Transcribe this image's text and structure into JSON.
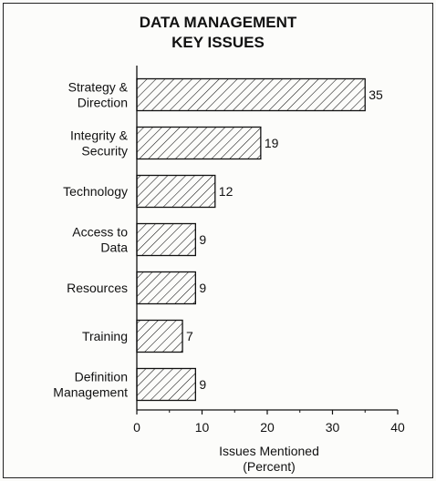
{
  "chart_data": {
    "type": "bar",
    "orientation": "horizontal",
    "title": [
      "DATA MANAGEMENT",
      "KEY ISSUES"
    ],
    "categories": [
      [
        "Strategy &",
        "Direction"
      ],
      [
        "Integrity &",
        "Security"
      ],
      [
        "Technology"
      ],
      [
        "Access to",
        "Data"
      ],
      [
        "Resources"
      ],
      [
        "Training"
      ],
      [
        "Definition",
        "Management"
      ]
    ],
    "values": [
      35,
      19,
      12,
      9,
      9,
      7,
      9
    ],
    "xlabel": [
      "Issues Mentioned",
      "(Percent)"
    ],
    "xticks": [
      0,
      10,
      20,
      30,
      40
    ],
    "xlim": [
      0,
      40
    ],
    "bar_fill": "diagonal-hatch",
    "colors": {
      "ink": "#111111",
      "background": "#fcfcfa"
    }
  }
}
